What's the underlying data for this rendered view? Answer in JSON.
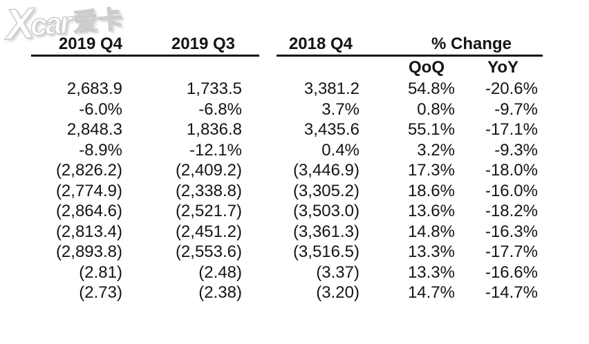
{
  "watermark": {
    "x": "X",
    "car": "car",
    "cn": "爱卡"
  },
  "colors": {
    "background": "#ffffff",
    "text": "#141414",
    "rule": "#111111",
    "watermark_outline": "#cccccc"
  },
  "table": {
    "headers": [
      "2019 Q4",
      "2019 Q3",
      "2018 Q4",
      "% Change"
    ],
    "subheaders": [
      "QoQ",
      "YoY"
    ]
  },
  "chart_data": {
    "type": "table",
    "title": "",
    "columns": [
      "2019 Q4",
      "2019 Q3",
      "2018 Q4",
      "QoQ",
      "YoY"
    ],
    "column_groups": [
      {
        "label": "% Change",
        "spans": [
          "QoQ",
          "YoY"
        ]
      }
    ],
    "rows": [
      [
        "2,683.9",
        "1,733.5",
        "3,381.2",
        "54.8%",
        "-20.6%"
      ],
      [
        "-6.0%",
        "-6.8%",
        "3.7%",
        "0.8%",
        "-9.7%"
      ],
      [
        "2,848.3",
        "1,836.8",
        "3,435.6",
        "55.1%",
        "-17.1%"
      ],
      [
        "-8.9%",
        "-12.1%",
        "0.4%",
        "3.2%",
        "-9.3%"
      ],
      [
        "(2,826.2)",
        "(2,409.2)",
        "(3,446.9)",
        "17.3%",
        "-18.0%"
      ],
      [
        "(2,774.9)",
        "(2,338.8)",
        "(3,305.2)",
        "18.6%",
        "-16.0%"
      ],
      [
        "(2,864.6)",
        "(2,521.7)",
        "(3,503.0)",
        "13.6%",
        "-18.2%"
      ],
      [
        "(2,813.4)",
        "(2,451.2)",
        "(3,361.3)",
        "14.8%",
        "-16.3%"
      ],
      [
        "(2,893.8)",
        "(2,553.6)",
        "(3,516.5)",
        "13.3%",
        "-17.7%"
      ],
      [
        "(2.81)",
        "(2.48)",
        "(3.37)",
        "13.3%",
        "-16.6%"
      ],
      [
        "(2.73)",
        "(2.38)",
        "(3.20)",
        "14.7%",
        "-14.7%"
      ]
    ]
  }
}
